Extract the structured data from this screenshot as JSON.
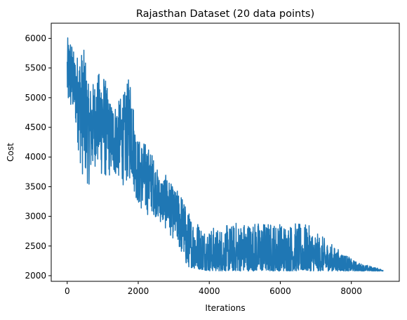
{
  "chart_data": {
    "type": "line",
    "title": "Rajasthan Dataset (20 data points)",
    "xlabel": "Iterations",
    "ylabel": "Cost",
    "xlim": [
      -450,
      9350
    ],
    "ylim": [
      1905,
      6255
    ],
    "xticks": [
      0,
      2000,
      4000,
      6000,
      8000
    ],
    "yticks": [
      2000,
      2500,
      3000,
      3500,
      4000,
      4500,
      5000,
      5500,
      6000
    ],
    "xtick_labels": [
      "0",
      "2000",
      "4000",
      "6000",
      "8000"
    ],
    "ytick_labels": [
      "2000",
      "2500",
      "3000",
      "3500",
      "4000",
      "4500",
      "5000",
      "5500",
      "6000"
    ],
    "grid": false,
    "legend": "none",
    "series_color": "#1f77b4",
    "series": [
      {
        "x_start": 0,
        "x_end": 8900,
        "floor": [
          [
            0,
            4750
          ],
          [
            200,
            4650
          ],
          [
            400,
            3700
          ],
          [
            600,
            3500
          ],
          [
            800,
            3850
          ],
          [
            1000,
            3600
          ],
          [
            1200,
            3650
          ],
          [
            1400,
            3650
          ],
          [
            1600,
            3500
          ],
          [
            1800,
            3600
          ],
          [
            2000,
            3150
          ],
          [
            2200,
            3000
          ],
          [
            2400,
            3050
          ],
          [
            2600,
            2900
          ],
          [
            2800,
            2750
          ],
          [
            3000,
            2600
          ],
          [
            3200,
            2350
          ],
          [
            3400,
            2150
          ],
          [
            3600,
            2120
          ],
          [
            3800,
            2100
          ],
          [
            4000,
            2080
          ],
          [
            5000,
            2080
          ],
          [
            6000,
            2080
          ],
          [
            7000,
            2080
          ],
          [
            8000,
            2080
          ],
          [
            8900,
            2080
          ]
        ],
        "ceiling": [
          [
            0,
            6000
          ],
          [
            100,
            6050
          ],
          [
            200,
            5700
          ],
          [
            400,
            5800
          ],
          [
            500,
            5800
          ],
          [
            600,
            5200
          ],
          [
            800,
            5300
          ],
          [
            1000,
            5500
          ],
          [
            1200,
            4950
          ],
          [
            1400,
            4900
          ],
          [
            1600,
            5050
          ],
          [
            1800,
            5450
          ],
          [
            1900,
            4600
          ],
          [
            2000,
            4300
          ],
          [
            2200,
            4250
          ],
          [
            2400,
            4050
          ],
          [
            2600,
            3650
          ],
          [
            2800,
            3700
          ],
          [
            3000,
            3450
          ],
          [
            3200,
            3400
          ],
          [
            3400,
            3100
          ],
          [
            3600,
            3000
          ],
          [
            3800,
            2850
          ],
          [
            4000,
            2800
          ],
          [
            4200,
            2800
          ],
          [
            5000,
            2920
          ],
          [
            6000,
            2900
          ],
          [
            6800,
            2850
          ],
          [
            7000,
            2720
          ],
          [
            7200,
            2650
          ],
          [
            7400,
            2550
          ],
          [
            7600,
            2450
          ],
          [
            7800,
            2380
          ],
          [
            8000,
            2280
          ],
          [
            8200,
            2220
          ],
          [
            8400,
            2180
          ],
          [
            8600,
            2150
          ],
          [
            8900,
            2100
          ]
        ]
      }
    ]
  }
}
